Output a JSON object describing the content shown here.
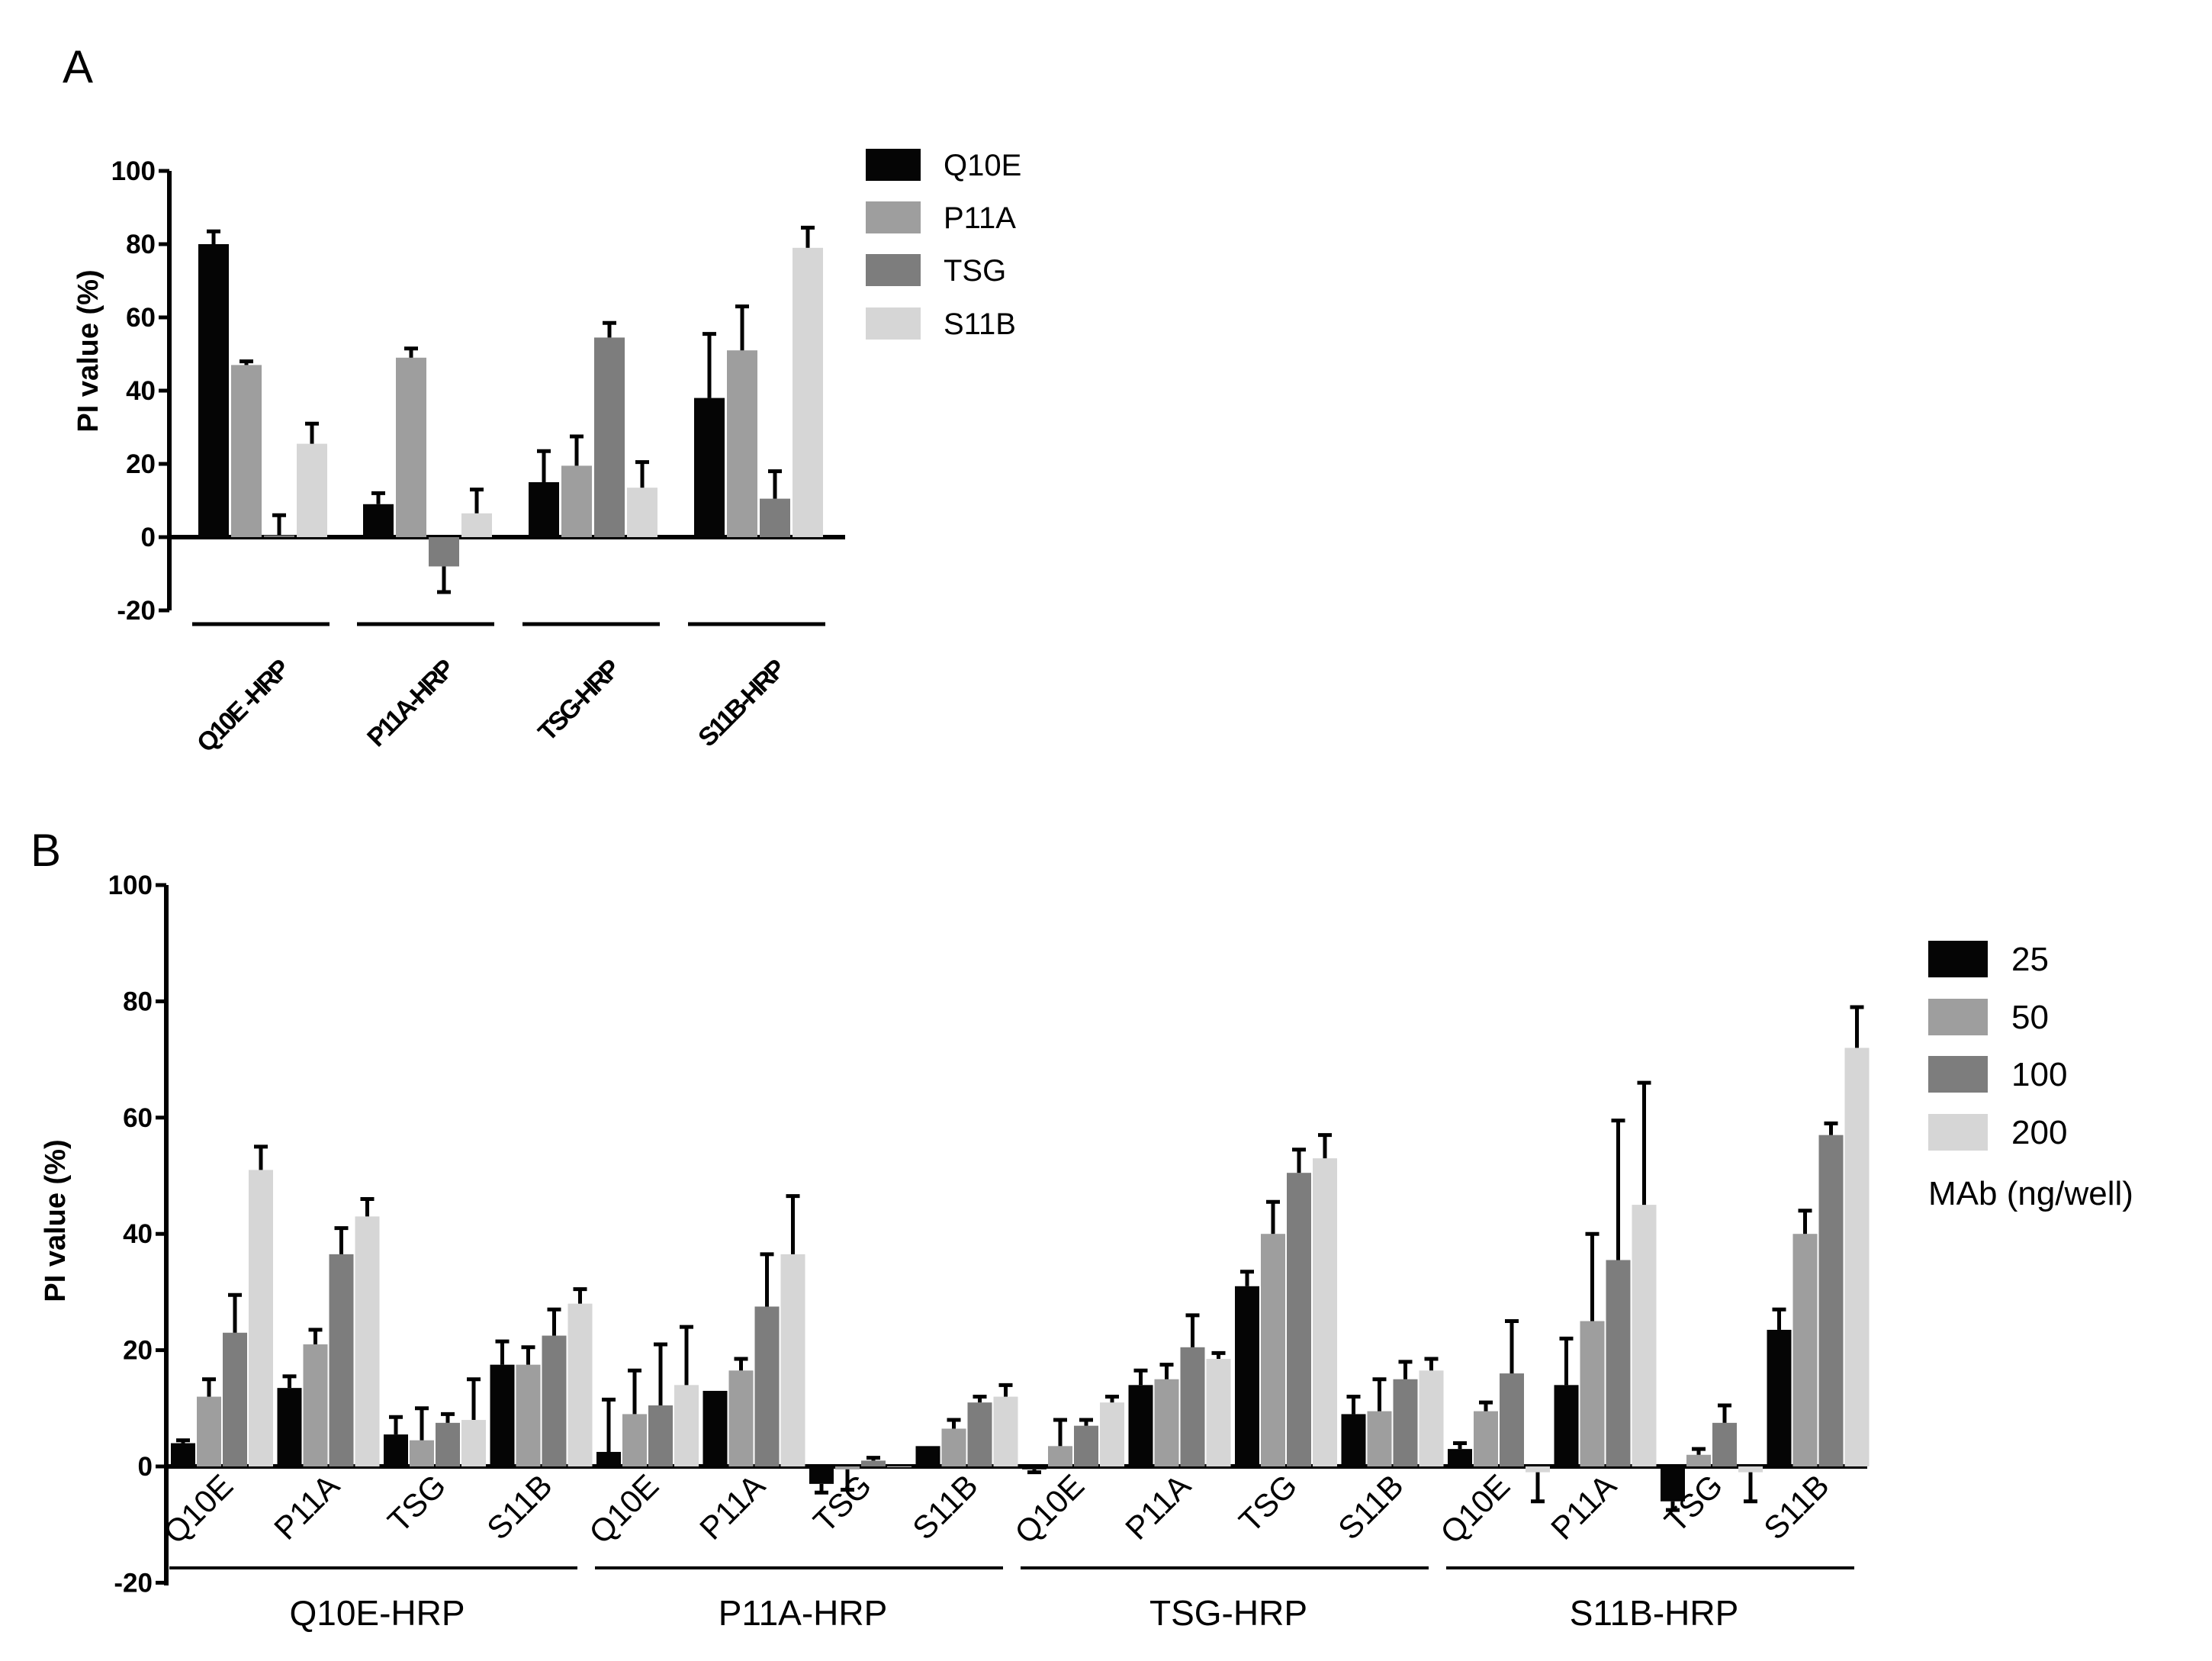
{
  "figure": {
    "panel_a_label": "A",
    "panel_b_label": "B"
  },
  "chart_data": [
    {
      "panel": "A",
      "type": "bar",
      "title": "",
      "xlabel": "",
      "ylabel": "PI value (%)",
      "ylim": [
        -20,
        100
      ],
      "yticks": [
        "-20",
        "0",
        "20",
        "40",
        "60",
        "80",
        "100"
      ],
      "grid": false,
      "legend_position": "top-right",
      "categories": [
        "Q10E -HRP",
        "P11A-HRP",
        "TSG-HRP",
        "S11B-HRP"
      ],
      "series": [
        {
          "name": "Q10E",
          "color": "#050505",
          "values": [
            80,
            9,
            15,
            38
          ],
          "errors": [
            3.5,
            3,
            8.5,
            17.5
          ]
        },
        {
          "name": "P11A",
          "color": "#9e9e9e",
          "values": [
            47,
            49,
            19.5,
            51
          ],
          "errors": [
            1,
            2.5,
            8,
            12
          ]
        },
        {
          "name": "TSG",
          "color": "#7d7d7d",
          "values": [
            0.5,
            -8,
            54.5,
            10.5
          ],
          "errors": [
            5.5,
            7,
            4,
            7.5
          ]
        },
        {
          "name": "S11B",
          "color": "#d6d6d6",
          "values": [
            25.5,
            6.5,
            13.5,
            79
          ],
          "errors": [
            5.5,
            6.5,
            7,
            5.5
          ]
        }
      ]
    },
    {
      "panel": "B",
      "type": "bar",
      "title": "",
      "xlabel": "",
      "ylabel": "PI value (%)",
      "ylim": [
        -20,
        100
      ],
      "yticks": [
        "-20",
        "0",
        "20",
        "40",
        "60",
        "80",
        "100"
      ],
      "grid": false,
      "legend_position": "right",
      "legend_title": "MAb (ng/well)",
      "groups": [
        "Q10E-HRP",
        "P11A-HRP",
        "TSG-HRP",
        "S11B-HRP"
      ],
      "subcategories": [
        "Q10E",
        "P11A",
        "TSG",
        "S11B"
      ],
      "series_colors": [
        "#050505",
        "#9e9e9e",
        "#7d7d7d",
        "#d6d6d6"
      ],
      "series": [
        {
          "name": "25",
          "values": [
            4,
            13.5,
            5.5,
            17.5,
            2.5,
            13,
            -3,
            3.5,
            -0.5,
            14,
            31,
            9,
            3,
            14,
            -6,
            23.5
          ],
          "errors": [
            0.5,
            2,
            3,
            4,
            9,
            0,
            1.5,
            0,
            0.5,
            2.5,
            2.5,
            3,
            1,
            8,
            1.5,
            3.5
          ]
        },
        {
          "name": "50",
          "values": [
            12,
            21,
            4.5,
            17.5,
            9,
            16.5,
            -0.5,
            6.5,
            3.5,
            15,
            40,
            9.5,
            9.5,
            25,
            2,
            40
          ],
          "errors": [
            3,
            2.5,
            5.5,
            3,
            7.5,
            2,
            3.5,
            1.5,
            4.5,
            2.5,
            5.5,
            5.5,
            1.5,
            15,
            1,
            4
          ]
        },
        {
          "name": "100",
          "values": [
            23,
            36.5,
            7.5,
            22.5,
            10.5,
            27.5,
            1,
            11,
            7,
            20.5,
            50.5,
            15,
            16,
            35.5,
            7.5,
            57
          ],
          "errors": [
            6.5,
            4.5,
            1.5,
            4.5,
            10.5,
            9,
            0.5,
            1,
            1,
            5.5,
            4,
            3,
            9,
            24,
            3,
            2
          ]
        },
        {
          "name": "200",
          "values": [
            51,
            43,
            8,
            28,
            14,
            36.5,
            0,
            12,
            11,
            18.5,
            53,
            16.5,
            -1,
            45,
            -1,
            72
          ],
          "errors": [
            4,
            3,
            7,
            2.5,
            10,
            10,
            0,
            2,
            1,
            1,
            4,
            2,
            5,
            21,
            5,
            7
          ]
        }
      ]
    }
  ]
}
